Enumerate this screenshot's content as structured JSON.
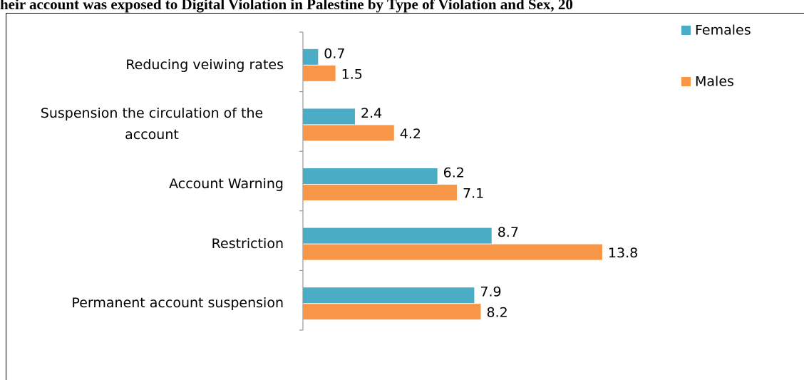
{
  "chart_data": {
    "type": "hbar",
    "title": "heir account was exposed to Digital Violation in Palestine by Type of Violation and Sex, 20",
    "categories": [
      "Reducing veiwing rates",
      "Suspension the circulation of the account",
      "Account Warning",
      "Restriction",
      "Permanent account suspension"
    ],
    "series": [
      {
        "name": "Females",
        "color": "#4bacc6",
        "values": [
          0.7,
          2.4,
          6.2,
          8.7,
          7.9
        ]
      },
      {
        "name": "Males",
        "color": "#f79646",
        "values": [
          1.5,
          4.2,
          7.1,
          13.8,
          8.2
        ]
      }
    ],
    "xlim": [
      0,
      14
    ],
    "legend": "top-right"
  }
}
